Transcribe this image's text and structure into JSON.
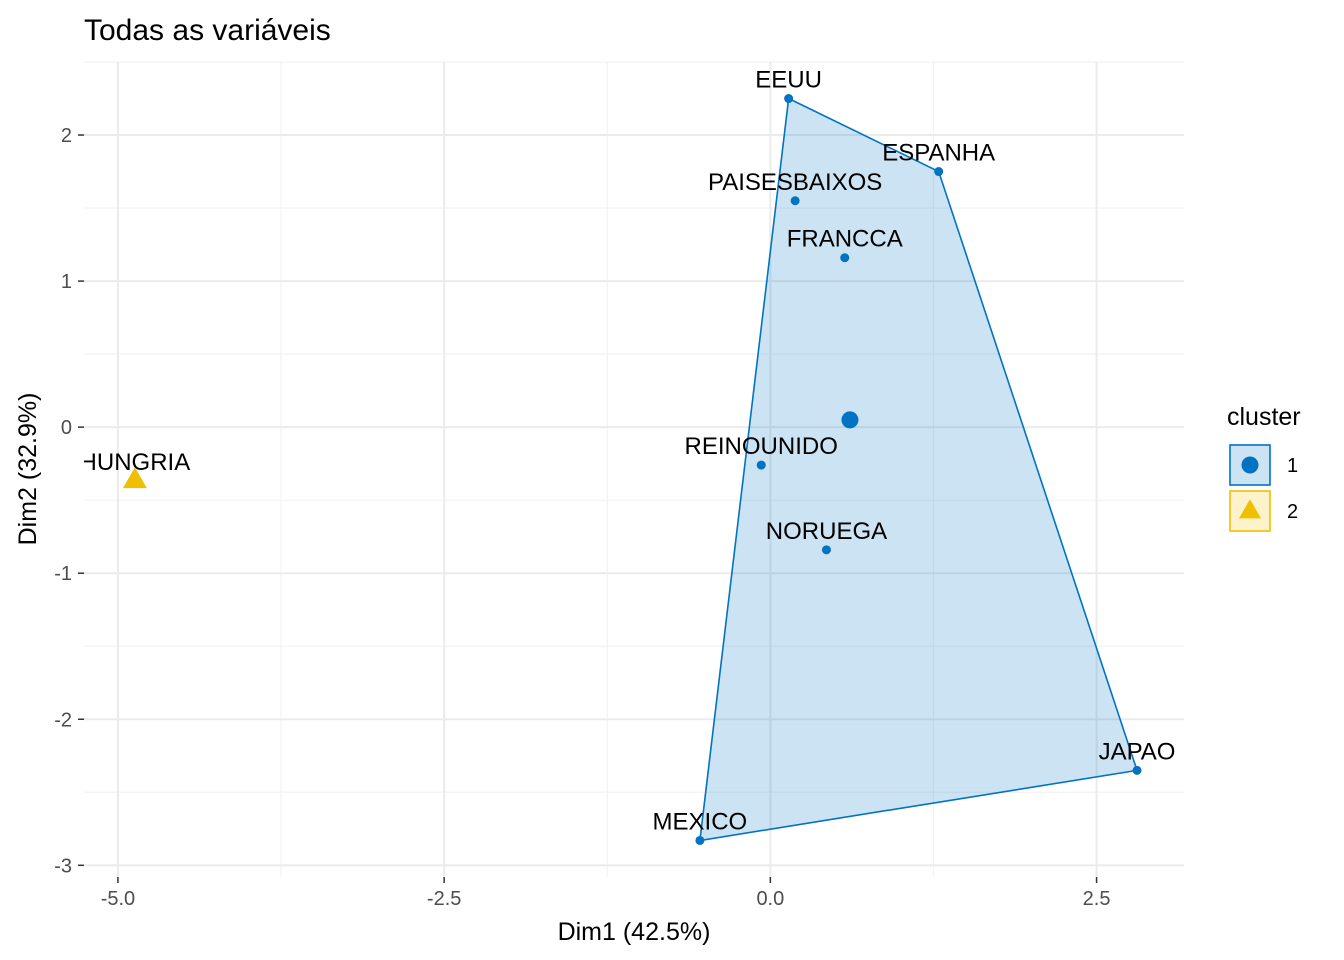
{
  "chart_data": {
    "type": "scatter",
    "title": "Todas as variáveis",
    "xlabel": "Dim1 (42.5%)",
    "ylabel": "Dim2 (32.9%)",
    "xlim": [
      -5.26,
      3.17
    ],
    "ylim": [
      -3.08,
      2.5
    ],
    "x_ticks": [
      {
        "value": -5.0,
        "label": "-5.0"
      },
      {
        "value": -2.5,
        "label": "-2.5"
      },
      {
        "value": 0.0,
        "label": "0.0"
      },
      {
        "value": 2.5,
        "label": "2.5"
      }
    ],
    "y_ticks": [
      {
        "value": -3,
        "label": "-3"
      },
      {
        "value": -2,
        "label": "-2"
      },
      {
        "value": -1,
        "label": "-1"
      },
      {
        "value": 0,
        "label": "0"
      },
      {
        "value": 1,
        "label": "1"
      },
      {
        "value": 2,
        "label": "2"
      }
    ],
    "grid": true,
    "legend": {
      "title": "cluster",
      "placement": "right"
    },
    "clusters": [
      {
        "name": "1",
        "color": "#0073C2",
        "shape": "circle",
        "hull": true,
        "centroid": {
          "x": 0.61,
          "y": 0.05
        }
      },
      {
        "name": "2",
        "color": "#EFC000",
        "shape": "triangle",
        "hull": false
      }
    ],
    "points": [
      {
        "label": "EEUU",
        "x": 0.14,
        "y": 2.25,
        "cluster": "1"
      },
      {
        "label": "ESPANHA",
        "x": 1.29,
        "y": 1.75,
        "cluster": "1"
      },
      {
        "label": "PAISESBAIXOS",
        "x": 0.19,
        "y": 1.55,
        "cluster": "1"
      },
      {
        "label": "FRANCCA",
        "x": 0.57,
        "y": 1.16,
        "cluster": "1"
      },
      {
        "label": "REINOUNIDO",
        "x": -0.07,
        "y": -0.26,
        "cluster": "1"
      },
      {
        "label": "NORUEGA",
        "x": 0.43,
        "y": -0.84,
        "cluster": "1"
      },
      {
        "label": "JAPAO",
        "x": 2.81,
        "y": -2.35,
        "cluster": "1"
      },
      {
        "label": "MEXICO",
        "x": -0.54,
        "y": -2.83,
        "cluster": "1"
      },
      {
        "label": "HUNGRIA",
        "x": -4.87,
        "y": -0.37,
        "cluster": "2"
      }
    ]
  }
}
